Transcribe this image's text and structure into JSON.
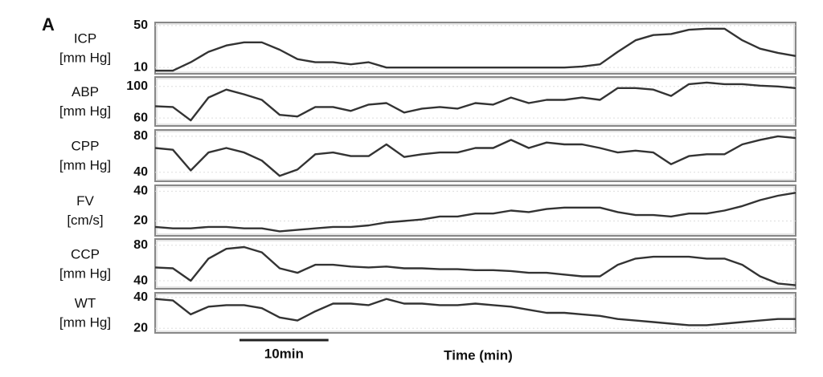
{
  "panel_label": "A",
  "xlabel": "Time (min)",
  "scale_bar": {
    "label": "10min",
    "length": 10
  },
  "xlim": [
    0,
    72
  ],
  "x": [
    0,
    2,
    4,
    6,
    8,
    10,
    12,
    14,
    16,
    18,
    20,
    22,
    24,
    26,
    28,
    30,
    32,
    34,
    36,
    38,
    40,
    42,
    44,
    46,
    48,
    50,
    52,
    54,
    56,
    58,
    60,
    62,
    64,
    66,
    68,
    70,
    72
  ],
  "chart_data": [
    {
      "type": "line",
      "ylabel": [
        "ICP",
        "[mm Hg]"
      ],
      "ylim": [
        4,
        53
      ],
      "yticks": [
        10,
        50
      ],
      "grid": true,
      "color": "#333333",
      "values": [
        7,
        7,
        15,
        25,
        31,
        34,
        34,
        27,
        18,
        15,
        15,
        13,
        15,
        10,
        10,
        10,
        10,
        10,
        10,
        10,
        10,
        10,
        10,
        10,
        11,
        13,
        25,
        36,
        41,
        42,
        46,
        47,
        47,
        36,
        28,
        24,
        21
      ]
    },
    {
      "type": "line",
      "ylabel": [
        "ABP",
        "[mm Hg]"
      ],
      "ylim": [
        50,
        112
      ],
      "yticks": [
        60,
        100
      ],
      "grid": true,
      "color": "#333333",
      "values": [
        75,
        74,
        57,
        86,
        96,
        90,
        83,
        64,
        62,
        74,
        74,
        69,
        77,
        79,
        67,
        72,
        74,
        72,
        79,
        77,
        86,
        79,
        83,
        83,
        86,
        83,
        98,
        98,
        96,
        88,
        103,
        105,
        103,
        103,
        101,
        100,
        98
      ]
    },
    {
      "type": "line",
      "ylabel": [
        "CPP",
        "[mm Hg]"
      ],
      "ylim": [
        30,
        87
      ],
      "yticks": [
        40,
        80
      ],
      "grid": true,
      "color": "#333333",
      "values": [
        67,
        65,
        42,
        62,
        67,
        62,
        53,
        36,
        43,
        60,
        62,
        58,
        58,
        71,
        57,
        60,
        62,
        62,
        67,
        67,
        76,
        67,
        73,
        71,
        71,
        67,
        62,
        64,
        62,
        49,
        58,
        60,
        60,
        71,
        76,
        80,
        78
      ]
    },
    {
      "type": "line",
      "ylabel": [
        "FV",
        "[cm/s]"
      ],
      "ylim": [
        10,
        44
      ],
      "yticks": [
        20,
        40
      ],
      "grid": true,
      "color": "#333333",
      "values": [
        16,
        15,
        15,
        16,
        16,
        15,
        15,
        13,
        14,
        15,
        16,
        16,
        17,
        19,
        20,
        21,
        23,
        23,
        25,
        25,
        27,
        26,
        28,
        29,
        29,
        29,
        26,
        24,
        24,
        23,
        25,
        25,
        27,
        30,
        34,
        37,
        39
      ]
    },
    {
      "type": "line",
      "ylabel": [
        "CCP",
        "[mm Hg]"
      ],
      "ylim": [
        31,
        87
      ],
      "yticks": [
        40,
        80
      ],
      "grid": true,
      "color": "#333333",
      "values": [
        55,
        54,
        40,
        65,
        76,
        78,
        72,
        54,
        49,
        58,
        58,
        56,
        55,
        56,
        54,
        54,
        53,
        53,
        52,
        52,
        51,
        49,
        49,
        47,
        45,
        45,
        58,
        65,
        67,
        67,
        67,
        65,
        65,
        58,
        45,
        37,
        35
      ]
    },
    {
      "type": "line",
      "ylabel": [
        "WT",
        "[mm Hg]"
      ],
      "ylim": [
        17,
        43
      ],
      "yticks": [
        20,
        40
      ],
      "grid": true,
      "color": "#333333",
      "values": [
        39,
        38,
        29,
        34,
        35,
        35,
        33,
        27,
        25,
        31,
        36,
        36,
        35,
        39,
        36,
        36,
        35,
        35,
        36,
        35,
        34,
        32,
        30,
        30,
        29,
        28,
        26,
        25,
        24,
        23,
        22,
        22,
        23,
        24,
        25,
        26,
        26
      ]
    }
  ]
}
